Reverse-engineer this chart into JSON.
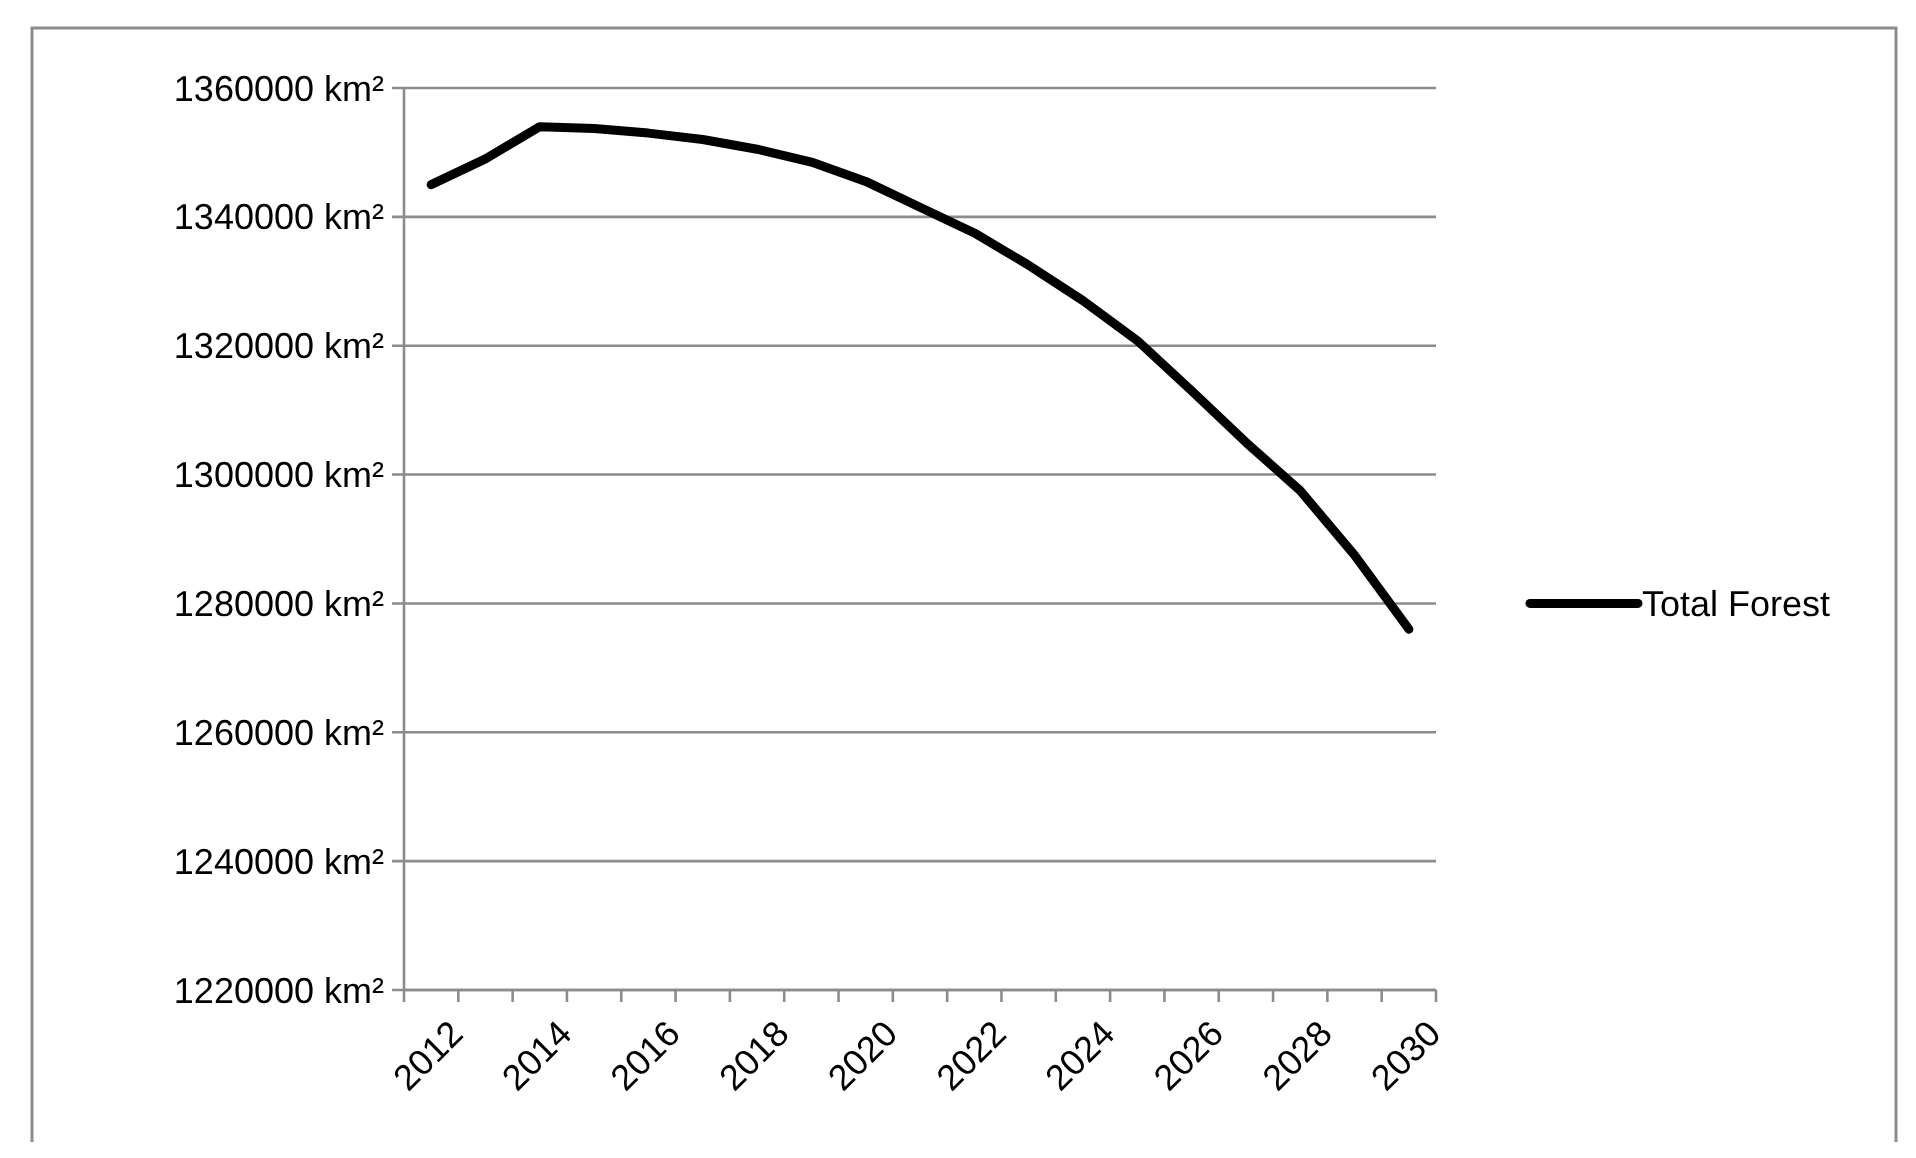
{
  "chart_data": {
    "type": "line",
    "categories": [
      "2012",
      null,
      "2014",
      null,
      "2016",
      null,
      "2018",
      null,
      "2020",
      null,
      "2022",
      null,
      "2024",
      null,
      "2026",
      null,
      "2028",
      null,
      "2030"
    ],
    "series": [
      {
        "name": "Total Forest",
        "color": "#000000",
        "values": [
          1345000,
          1349000,
          1354000,
          1353700,
          1353000,
          1352000,
          1350500,
          1348500,
          1345500,
          1341500,
          1337500,
          1332500,
          1327000,
          1320800,
          1313000,
          1305000,
          1297500,
          1287500,
          1276000
        ]
      }
    ],
    "ylim": [
      1220000,
      1360000
    ],
    "yticks": [
      {
        "value": 1220000,
        "label": "1220000 km²"
      },
      {
        "value": 1240000,
        "label": "1240000 km²"
      },
      {
        "value": 1260000,
        "label": "1260000 km²"
      },
      {
        "value": 1280000,
        "label": "1280000 km²"
      },
      {
        "value": 1300000,
        "label": "1300000 km²"
      },
      {
        "value": 1320000,
        "label": "1320000 km²"
      },
      {
        "value": 1340000,
        "label": "1340000 km²"
      },
      {
        "value": 1360000,
        "label": "1360000 km²"
      }
    ],
    "grid": "y",
    "legend": "right",
    "marker": "none",
    "line_style": "solid"
  }
}
